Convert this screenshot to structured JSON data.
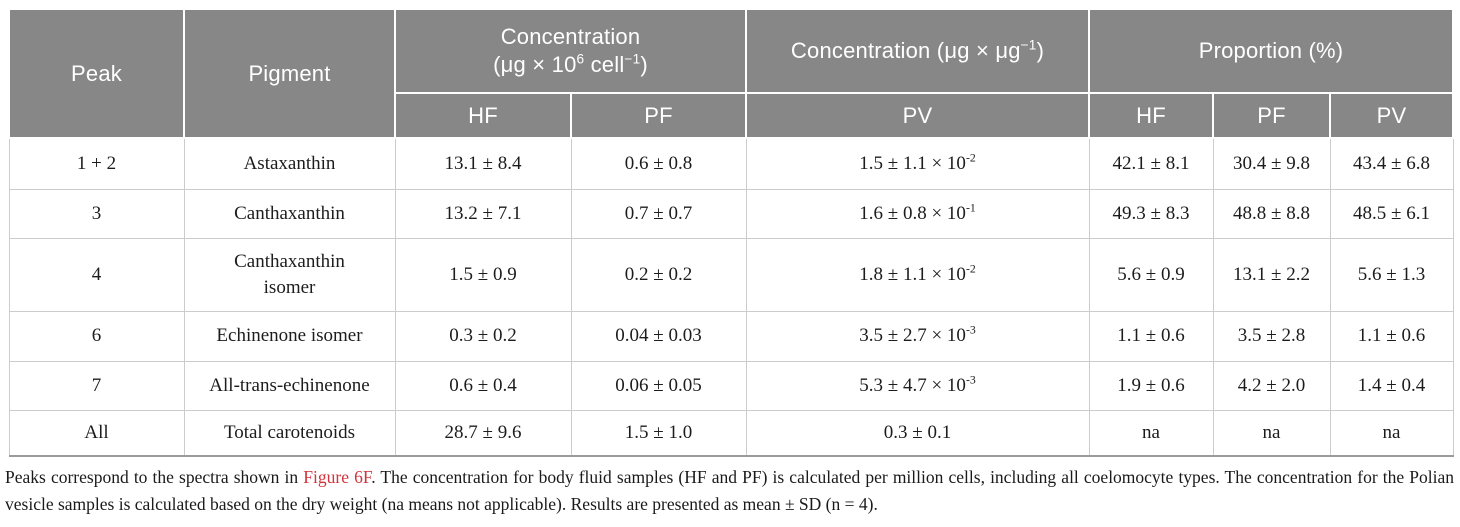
{
  "colors": {
    "header_bg": "#878787",
    "header_text": "#ffffff",
    "grid_line": "#cccccc",
    "table_bottom_line": "#9b9b9b",
    "body_text": "#1c1c1c",
    "figure_link_red": "#d2333c"
  },
  "table": {
    "columns": {
      "peak_label": "Peak",
      "pigment_label": "Pigment",
      "conc_cell_title_line1": "Concentration",
      "conc_cell_title_line2": [
        "(μg × 10",
        {
          "sup": "6"
        },
        " cell",
        {
          "sup": "−1"
        },
        ")"
      ],
      "conc_weight_title": [
        "Concentration (μg × μg",
        {
          "sup": "−1"
        },
        ")"
      ],
      "proportion_title": "Proportion (%)",
      "subheaders": [
        "HF",
        "PF",
        "PV",
        "HF",
        "PF",
        "PV"
      ]
    },
    "rows": [
      {
        "peak": "1 + 2",
        "pigment": "Astaxanthin",
        "conc_hf": "13.1 ± 8.4",
        "conc_pf": "0.6 ± 0.8",
        "conc_pv": [
          "1.5 ± 1.1 × 10",
          {
            "sup": "-2"
          }
        ],
        "prop_hf": "42.1 ± 8.1",
        "prop_pf": "30.4 ± 9.8",
        "prop_pv": "43.4 ± 6.8"
      },
      {
        "peak": "3",
        "pigment": "Canthaxanthin",
        "conc_hf": "13.2 ± 7.1",
        "conc_pf": "0.7 ± 0.7",
        "conc_pv": [
          "1.6 ± 0.8 × 10",
          {
            "sup": "-1"
          }
        ],
        "prop_hf": "49.3 ± 8.3",
        "prop_pf": "48.8 ± 8.8",
        "prop_pv": "48.5 ± 6.1"
      },
      {
        "peak": "4",
        "pigment": "Canthaxanthin isomer",
        "conc_hf": "1.5 ± 0.9",
        "conc_pf": "0.2 ± 0.2",
        "conc_pv": [
          "1.8 ± 1.1 × 10",
          {
            "sup": "-2"
          }
        ],
        "prop_hf": "5.6 ± 0.9",
        "prop_pf": "13.1 ± 2.2",
        "prop_pv": "5.6 ± 1.3"
      },
      {
        "peak": "6",
        "pigment": "Echinenone isomer",
        "conc_hf": "0.3 ± 0.2",
        "conc_pf": "0.04 ± 0.03",
        "conc_pv": [
          "3.5 ± 2.7 × 10",
          {
            "sup": "-3"
          }
        ],
        "prop_hf": "1.1 ± 0.6",
        "prop_pf": "3.5 ± 2.8",
        "prop_pv": "1.1 ± 0.6"
      },
      {
        "peak": "7",
        "pigment": "All-trans-echinenone",
        "conc_hf": "0.6 ± 0.4",
        "conc_pf": "0.06 ± 0.05",
        "conc_pv": [
          "5.3 ± 4.7 × 10",
          {
            "sup": "-3"
          }
        ],
        "prop_hf": "1.9 ± 0.6",
        "prop_pf": "4.2 ± 2.0",
        "prop_pv": "1.4 ± 0.4"
      },
      {
        "peak": "All",
        "pigment": "Total carotenoids",
        "conc_hf": "28.7 ± 9.6",
        "conc_pf": "1.5 ± 1.0",
        "conc_pv": [
          "0.3 ± 0.1"
        ],
        "prop_hf": "na",
        "prop_pf": "na",
        "prop_pv": "na"
      }
    ]
  },
  "footnote": {
    "text_before_link": "Peaks correspond to the spectra shown in ",
    "link": "Figure 6F",
    "text_after_link": ". The concentration for body fluid samples (HF and PF) is calculated per million cells, including all coelomocyte types. The concentration for the Polian vesicle samples is calculated based on the dry weight (na means not applicable). Results are presented as mean ± SD (n = 4)."
  }
}
